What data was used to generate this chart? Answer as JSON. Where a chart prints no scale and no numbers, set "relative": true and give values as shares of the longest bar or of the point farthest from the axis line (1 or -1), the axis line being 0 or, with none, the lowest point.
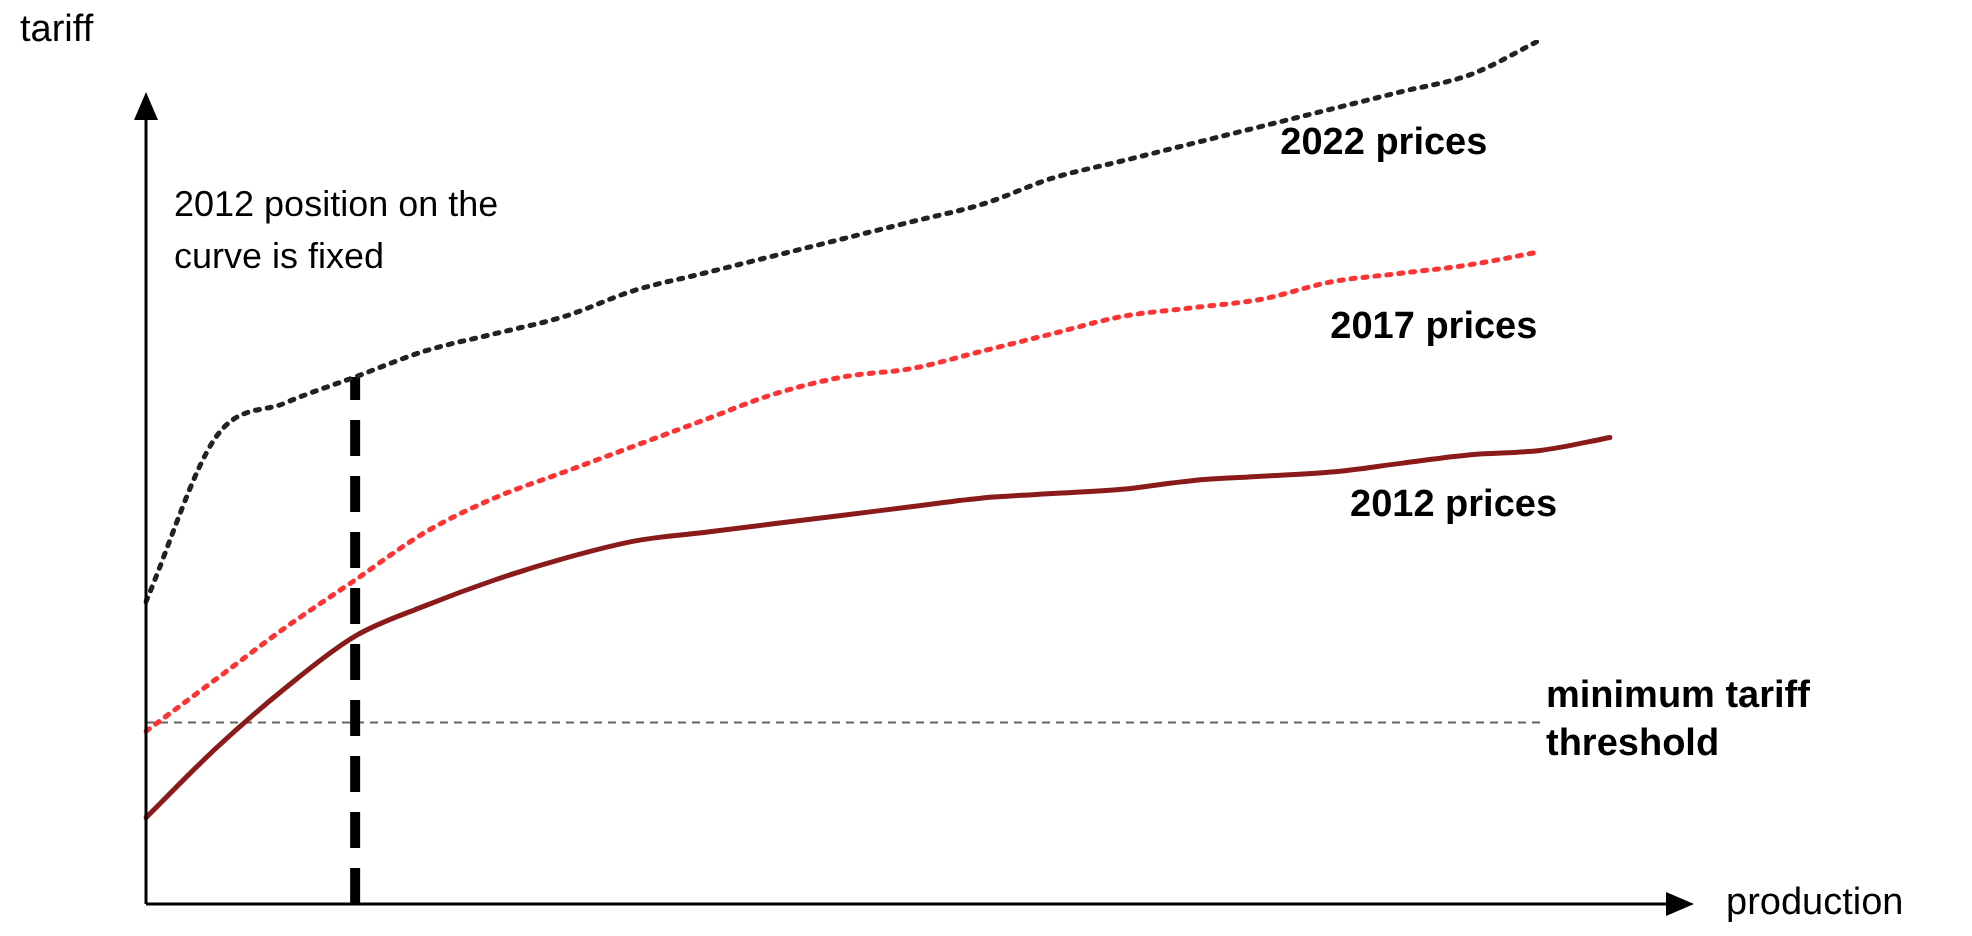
{
  "chart_data": {
    "type": "line",
    "relative": true,
    "xlabel": "production",
    "ylabel": "tariff",
    "legend": false,
    "annotations": [
      "2012 position on the curve is fixed"
    ],
    "marker": "none",
    "categories": [
      null,
      null,
      null,
      null,
      null,
      null,
      null,
      null,
      null,
      null,
      null,
      null,
      null,
      null,
      null,
      null,
      null,
      null,
      null,
      null,
      null,
      null
    ],
    "series": [
      {
        "name": "2022 prices",
        "color": "#222222",
        "line_style": "dotted",
        "values": [
          0.35,
          0.54,
          0.58,
          0.61,
          0.64,
          0.66,
          0.68,
          0.71,
          0.73,
          0.75,
          0.77,
          0.79,
          0.81,
          0.84,
          0.86,
          0.88,
          0.9,
          0.92,
          0.94,
          0.96,
          1,
          null
        ]
      },
      {
        "name": "2017 prices",
        "color": "#ff3333",
        "line_style": "dotted",
        "values": [
          0.2,
          0.26,
          0.32,
          0.375,
          0.43,
          0.47,
          0.5,
          0.53,
          0.56,
          0.59,
          0.61,
          0.62,
          0.64,
          0.66,
          0.68,
          0.69,
          0.7,
          0.72,
          0.73,
          0.74,
          0.755,
          null
        ]
      },
      {
        "name": "2012 prices",
        "color": "#8b1a1a",
        "line_style": "solid",
        "values": [
          0.1,
          0.18,
          0.25,
          0.31,
          0.345,
          0.375,
          0.4,
          0.42,
          0.43,
          0.44,
          0.45,
          0.46,
          0.47,
          0.475,
          0.48,
          0.49,
          0.495,
          0.5,
          0.51,
          0.52,
          0.525,
          0.54
        ]
      }
    ],
    "ref_lines": [
      {
        "axis": "y",
        "value": 0.21,
        "label": "minimum tariff threshold",
        "color": "#666666",
        "line_style": "dashed"
      }
    ]
  }
}
